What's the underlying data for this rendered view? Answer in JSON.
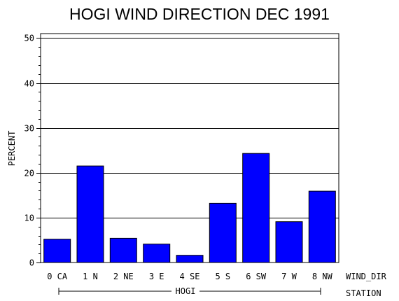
{
  "chart_data": {
    "type": "bar",
    "title": "HOGI WIND DIRECTION DEC 1991",
    "ylabel": "PERCENT",
    "xlabel": "WIND_DIR",
    "group_axis_label": "STATION",
    "group_label": "HOGI",
    "categories": [
      "0 CA",
      "1 N",
      "2 NE",
      "3 E",
      "4 SE",
      "5 S",
      "6 SW",
      "7 W",
      "8 NW"
    ],
    "values": [
      5.2,
      21.5,
      5.4,
      4.1,
      1.6,
      13.2,
      24.3,
      9.1,
      15.9
    ],
    "ylim": [
      0,
      51
    ],
    "yticks": [
      "0",
      "10",
      "20",
      "30",
      "40",
      "50"
    ],
    "ytick_values": [
      0,
      10,
      20,
      30,
      40,
      50
    ],
    "grid": true,
    "bar_color": "#0000ff"
  }
}
